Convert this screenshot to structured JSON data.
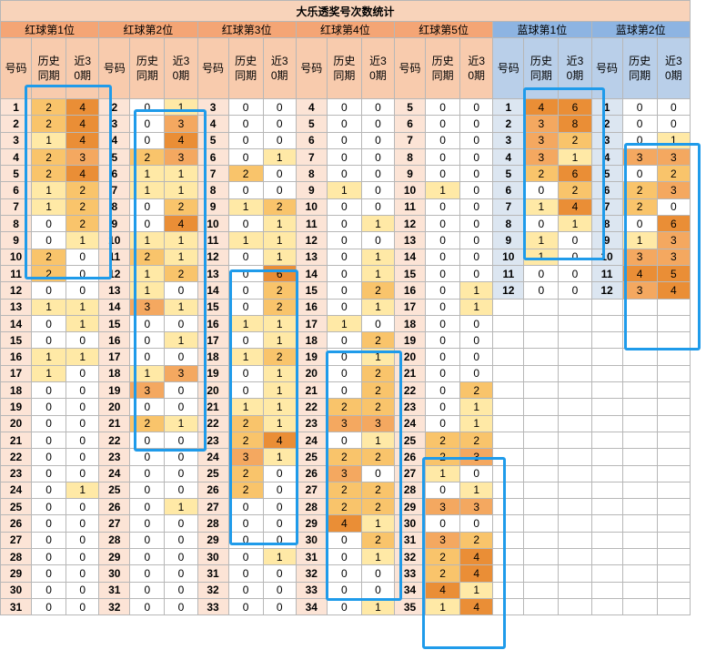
{
  "title": "大乐透奖号次数统计",
  "groups": [
    {
      "label": "红球第1位",
      "color": "red",
      "nums": [
        1,
        2,
        3,
        4,
        5,
        6,
        7,
        8,
        9,
        10,
        11,
        12,
        13,
        14,
        15,
        16,
        17,
        18,
        19,
        20,
        21,
        22,
        23,
        24,
        25,
        26,
        27,
        28,
        29,
        30,
        31
      ],
      "hist": [
        2,
        2,
        1,
        2,
        2,
        1,
        1,
        0,
        0,
        2,
        2,
        0,
        1,
        0,
        0,
        1,
        1,
        0,
        0,
        0,
        0,
        0,
        0,
        0,
        0,
        0,
        0,
        0,
        0,
        0,
        0
      ],
      "recent": [
        4,
        4,
        4,
        3,
        4,
        2,
        2,
        2,
        1,
        0,
        0,
        0,
        1,
        1,
        0,
        1,
        0,
        0,
        0,
        0,
        0,
        0,
        0,
        1,
        0,
        0,
        0,
        0,
        0,
        0,
        0
      ]
    },
    {
      "label": "红球第2位",
      "color": "red",
      "nums": [
        2,
        3,
        4,
        5,
        6,
        7,
        8,
        9,
        10,
        11,
        12,
        13,
        14,
        15,
        16,
        17,
        18,
        19,
        20,
        21,
        22,
        23,
        24,
        25,
        26,
        27,
        28,
        29,
        30,
        31,
        32
      ],
      "hist": [
        0,
        0,
        0,
        2,
        1,
        1,
        0,
        0,
        1,
        2,
        1,
        1,
        3,
        0,
        0,
        0,
        1,
        3,
        0,
        2,
        0,
        0,
        0,
        0,
        0,
        0,
        0,
        0,
        0,
        0,
        0
      ],
      "recent": [
        1,
        3,
        4,
        3,
        1,
        1,
        2,
        4,
        1,
        1,
        2,
        0,
        1,
        0,
        1,
        0,
        3,
        0,
        0,
        1,
        0,
        0,
        0,
        0,
        1,
        0,
        0,
        0,
        0,
        0,
        0
      ]
    },
    {
      "label": "红球第3位",
      "color": "red",
      "nums": [
        3,
        4,
        5,
        6,
        7,
        8,
        9,
        10,
        11,
        12,
        13,
        14,
        15,
        16,
        17,
        18,
        19,
        20,
        21,
        22,
        23,
        24,
        25,
        26,
        27,
        28,
        29,
        30,
        31,
        32,
        33
      ],
      "hist": [
        0,
        0,
        0,
        0,
        2,
        0,
        1,
        0,
        1,
        0,
        0,
        0,
        0,
        1,
        0,
        1,
        0,
        0,
        1,
        2,
        2,
        3,
        2,
        2,
        0,
        0,
        0,
        0,
        0,
        0,
        0
      ],
      "recent": [
        0,
        0,
        0,
        1,
        0,
        0,
        2,
        1,
        1,
        1,
        6,
        2,
        2,
        1,
        1,
        2,
        1,
        1,
        1,
        1,
        4,
        1,
        0,
        0,
        0,
        0,
        0,
        1,
        0,
        0,
        0
      ]
    },
    {
      "label": "红球第4位",
      "color": "red",
      "nums": [
        4,
        5,
        6,
        7,
        8,
        9,
        10,
        11,
        12,
        13,
        14,
        15,
        16,
        17,
        18,
        19,
        20,
        21,
        22,
        23,
        24,
        25,
        26,
        27,
        28,
        29,
        30,
        31,
        32,
        33,
        34
      ],
      "hist": [
        0,
        0,
        0,
        0,
        0,
        1,
        0,
        0,
        0,
        0,
        0,
        0,
        0,
        1,
        0,
        0,
        0,
        0,
        2,
        3,
        0,
        2,
        3,
        2,
        2,
        4,
        0,
        0,
        0,
        0,
        0
      ],
      "recent": [
        0,
        0,
        0,
        0,
        0,
        0,
        0,
        1,
        0,
        1,
        1,
        2,
        1,
        0,
        2,
        1,
        2,
        2,
        2,
        3,
        1,
        2,
        0,
        2,
        2,
        1,
        2,
        1,
        0,
        0,
        1
      ]
    },
    {
      "label": "红球第5位",
      "color": "red",
      "nums": [
        5,
        6,
        7,
        8,
        9,
        10,
        11,
        12,
        13,
        14,
        15,
        16,
        17,
        18,
        19,
        20,
        21,
        22,
        23,
        24,
        25,
        26,
        27,
        28,
        29,
        30,
        31,
        32,
        33,
        34,
        35
      ],
      "hist": [
        0,
        0,
        0,
        0,
        0,
        1,
        0,
        0,
        0,
        0,
        0,
        0,
        0,
        0,
        0,
        0,
        0,
        0,
        0,
        0,
        2,
        2,
        1,
        0,
        3,
        0,
        3,
        2,
        2,
        4,
        1
      ],
      "recent": [
        0,
        0,
        0,
        0,
        0,
        0,
        0,
        0,
        0,
        0,
        0,
        1,
        1,
        0,
        0,
        0,
        0,
        2,
        1,
        1,
        2,
        3,
        0,
        1,
        3,
        0,
        2,
        4,
        4,
        1,
        4
      ]
    },
    {
      "label": "蓝球第1位",
      "color": "blue",
      "nums": [
        1,
        2,
        3,
        4,
        5,
        6,
        7,
        8,
        9,
        10,
        11,
        12
      ],
      "hist": [
        4,
        3,
        3,
        3,
        2,
        0,
        1,
        0,
        1,
        1,
        0,
        0
      ],
      "recent": [
        6,
        8,
        2,
        1,
        6,
        2,
        4,
        1,
        0,
        0,
        0,
        0
      ]
    },
    {
      "label": "蓝球第2位",
      "color": "blue",
      "nums": [
        1,
        2,
        3,
        4,
        5,
        6,
        7,
        8,
        9,
        10,
        11,
        12
      ],
      "hist": [
        0,
        0,
        0,
        3,
        0,
        2,
        2,
        0,
        1,
        3,
        4,
        3
      ],
      "recent": [
        0,
        0,
        1,
        3,
        2,
        3,
        0,
        6,
        3,
        3,
        5,
        4
      ]
    }
  ],
  "headers": {
    "num": "号码",
    "hist": "历史同期",
    "recent": "近30期"
  }
}
